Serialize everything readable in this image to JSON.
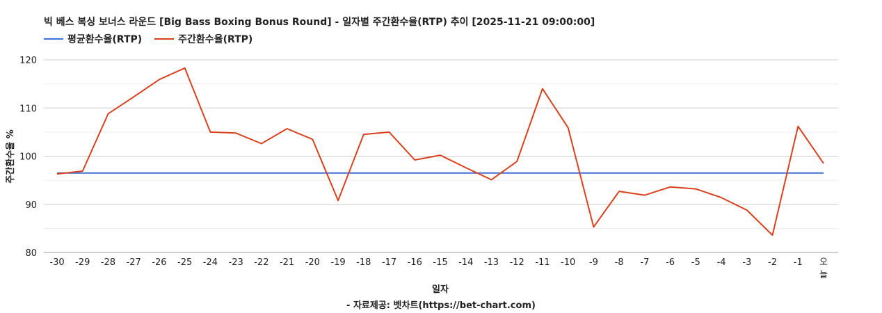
{
  "chart_data": {
    "type": "line",
    "title": "빅 베스 복싱 보너스 라운드 [Big Bass Boxing Bonus Round] - 일자별 주간환수율(RTP) 추이 [2025-11-21 09:00:00]",
    "xlabel": "일자",
    "ylabel": "주간환수율 %",
    "ylim": [
      80,
      120
    ],
    "yticks": [
      80,
      90,
      100,
      110,
      120
    ],
    "grid": true,
    "legend_position": "top-left",
    "categories": [
      "-30",
      "-29",
      "-28",
      "-27",
      "-26",
      "-25",
      "-24",
      "-23",
      "-22",
      "-21",
      "-20",
      "-19",
      "-18",
      "-17",
      "-16",
      "-15",
      "-14",
      "-13",
      "-12",
      "-11",
      "-10",
      "-9",
      "-8",
      "-7",
      "-6",
      "-5",
      "-4",
      "-3",
      "-2",
      "-1",
      "오늘"
    ],
    "series": [
      {
        "name": "평균환수율(RTP)",
        "color": "#3b6fd6",
        "values": [
          96.5,
          96.5,
          96.5,
          96.5,
          96.5,
          96.5,
          96.5,
          96.5,
          96.5,
          96.5,
          96.5,
          96.5,
          96.5,
          96.5,
          96.5,
          96.5,
          96.5,
          96.5,
          96.5,
          96.5,
          96.5,
          96.5,
          96.5,
          96.5,
          96.5,
          96.5,
          96.5,
          96.5,
          96.5,
          96.5,
          96.5
        ]
      },
      {
        "name": "주간환수율(RTP)",
        "color": "#d9401e",
        "values": [
          96.3,
          96.9,
          108.8,
          112.3,
          115.9,
          118.3,
          105.0,
          104.8,
          102.6,
          105.7,
          103.5,
          90.8,
          104.5,
          105.0,
          99.2,
          100.2,
          97.6,
          95.1,
          98.9,
          114.0,
          105.9,
          85.3,
          92.7,
          91.9,
          93.6,
          93.2,
          91.4,
          88.8,
          83.6,
          106.2,
          98.5
        ]
      }
    ]
  },
  "footer": {
    "source": "- 자료제공: 벳차트(https://bet-chart.com)"
  }
}
